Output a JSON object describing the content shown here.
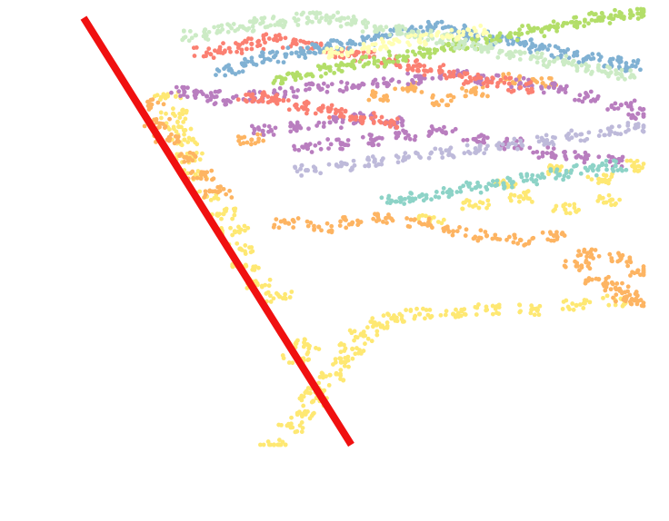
{
  "chart_data": {
    "type": "scatter",
    "title": "",
    "xlabel": "",
    "ylabel": "",
    "grid": false,
    "legend": "none",
    "xlim": [
      0,
      1
    ],
    "ylim": [
      0,
      1
    ],
    "reference_line": {
      "color": "#f01010",
      "points": [
        [
          0.0,
          0.98
        ],
        [
          0.478,
          0.0
        ]
      ]
    },
    "series": [
      {
        "color": "#fee873",
        "x": [
          0.34,
          0.37,
          0.39,
          0.41,
          0.42,
          0.44,
          0.46,
          0.48,
          0.5,
          0.52,
          0.55,
          0.6,
          0.66,
          0.72,
          0.8,
          0.88,
          0.95,
          0.75,
          0.85,
          0.92,
          0.98,
          0.62,
          0.7,
          0.78,
          0.86,
          0.94,
          0.38,
          0.4,
          0.35,
          0.31,
          0.29,
          0.28,
          0.27,
          0.25,
          0.22,
          0.2,
          0.19,
          0.18,
          0.17,
          0.16,
          0.15
        ],
        "y": [
          0.0,
          0.04,
          0.07,
          0.1,
          0.13,
          0.16,
          0.19,
          0.22,
          0.25,
          0.28,
          0.29,
          0.3,
          0.3,
          0.31,
          0.31,
          0.32,
          0.33,
          0.6,
          0.63,
          0.61,
          0.64,
          0.52,
          0.55,
          0.57,
          0.54,
          0.56,
          0.2,
          0.23,
          0.34,
          0.37,
          0.41,
          0.45,
          0.49,
          0.53,
          0.57,
          0.62,
          0.66,
          0.7,
          0.73,
          0.76,
          0.8
        ]
      },
      {
        "color": "#fdb462",
        "x": [
          0.12,
          0.13,
          0.15,
          0.18,
          0.21,
          0.24,
          0.3,
          0.36,
          0.42,
          0.48,
          0.54,
          0.6,
          0.66,
          0.72,
          0.78,
          0.84,
          0.9,
          0.96,
          0.99,
          0.88,
          0.92,
          0.95,
          0.97,
          0.99,
          0.52,
          0.58,
          0.64,
          0.7,
          0.76,
          0.82
        ],
        "y": [
          0.78,
          0.74,
          0.7,
          0.66,
          0.62,
          0.58,
          0.7,
          0.51,
          0.5,
          0.51,
          0.52,
          0.51,
          0.49,
          0.48,
          0.47,
          0.48,
          0.44,
          0.43,
          0.4,
          0.41,
          0.38,
          0.36,
          0.34,
          0.33,
          0.8,
          0.82,
          0.79,
          0.81,
          0.84,
          0.83
        ]
      },
      {
        "color": "#b97ebf",
        "x": [
          0.18,
          0.22,
          0.25,
          0.3,
          0.36,
          0.42,
          0.48,
          0.54,
          0.6,
          0.66,
          0.72,
          0.78,
          0.84,
          0.9,
          0.96,
          0.99,
          0.4,
          0.46,
          0.52,
          0.58,
          0.64,
          0.7,
          0.76,
          0.82,
          0.88,
          0.94,
          0.32,
          0.38,
          0.44,
          0.5,
          0.56
        ],
        "y": [
          0.81,
          0.8,
          0.79,
          0.8,
          0.81,
          0.82,
          0.82,
          0.83,
          0.84,
          0.85,
          0.84,
          0.83,
          0.82,
          0.8,
          0.78,
          0.76,
          0.68,
          0.69,
          0.7,
          0.71,
          0.72,
          0.7,
          0.69,
          0.67,
          0.66,
          0.65,
          0.72,
          0.73,
          0.74,
          0.75,
          0.74
        ]
      },
      {
        "color": "#fb8072",
        "x": [
          0.22,
          0.26,
          0.3,
          0.34,
          0.38,
          0.42,
          0.46,
          0.5,
          0.54,
          0.58,
          0.62,
          0.66,
          0.7,
          0.74,
          0.78,
          0.3,
          0.34,
          0.38,
          0.42,
          0.46,
          0.5,
          0.54
        ],
        "y": [
          0.9,
          0.91,
          0.92,
          0.93,
          0.92,
          0.91,
          0.9,
          0.89,
          0.88,
          0.87,
          0.86,
          0.85,
          0.84,
          0.83,
          0.82,
          0.8,
          0.79,
          0.78,
          0.77,
          0.76,
          0.75,
          0.74
        ]
      },
      {
        "color": "#80b1d3",
        "x": [
          0.26,
          0.3,
          0.34,
          0.38,
          0.42,
          0.46,
          0.5,
          0.54,
          0.58,
          0.62,
          0.66,
          0.7,
          0.74,
          0.78,
          0.82,
          0.86,
          0.9,
          0.94,
          0.98
        ],
        "y": [
          0.86,
          0.88,
          0.89,
          0.9,
          0.91,
          0.92,
          0.93,
          0.94,
          0.95,
          0.96,
          0.95,
          0.94,
          0.93,
          0.92,
          0.91,
          0.9,
          0.89,
          0.88,
          0.87
        ]
      },
      {
        "color": "#b3de69",
        "x": [
          0.36,
          0.4,
          0.44,
          0.48,
          0.52,
          0.56,
          0.6,
          0.64,
          0.68,
          0.72,
          0.76,
          0.8,
          0.84,
          0.88,
          0.92,
          0.96,
          0.99
        ],
        "y": [
          0.84,
          0.85,
          0.86,
          0.87,
          0.88,
          0.89,
          0.9,
          0.91,
          0.92,
          0.93,
          0.94,
          0.95,
          0.96,
          0.97,
          0.98,
          0.99,
          0.99
        ]
      },
      {
        "color": "#ccebc5",
        "x": [
          0.2,
          0.24,
          0.28,
          0.32,
          0.36,
          0.4,
          0.44,
          0.48,
          0.52,
          0.56,
          0.6,
          0.64,
          0.68,
          0.72,
          0.76,
          0.8,
          0.84,
          0.88,
          0.92,
          0.96
        ],
        "y": [
          0.94,
          0.95,
          0.96,
          0.97,
          0.97,
          0.98,
          0.98,
          0.97,
          0.96,
          0.95,
          0.94,
          0.93,
          0.92,
          0.91,
          0.9,
          0.89,
          0.88,
          0.87,
          0.86,
          0.85
        ]
      },
      {
        "color": "#bebada",
        "x": [
          0.4,
          0.46,
          0.52,
          0.58,
          0.64,
          0.7,
          0.76,
          0.82,
          0.88,
          0.94,
          0.99
        ],
        "y": [
          0.63,
          0.64,
          0.65,
          0.66,
          0.67,
          0.68,
          0.69,
          0.7,
          0.71,
          0.72,
          0.73
        ]
      },
      {
        "color": "#8dd3c7",
        "x": [
          0.55,
          0.6,
          0.65,
          0.7,
          0.75,
          0.8,
          0.85,
          0.9,
          0.95
        ],
        "y": [
          0.56,
          0.57,
          0.58,
          0.59,
          0.6,
          0.61,
          0.62,
          0.63,
          0.64
        ]
      },
      {
        "color": "#ffffb3",
        "x": [
          0.45,
          0.5,
          0.55,
          0.6,
          0.65,
          0.7
        ],
        "y": [
          0.9,
          0.91,
          0.92,
          0.93,
          0.94,
          0.95
        ]
      }
    ]
  }
}
